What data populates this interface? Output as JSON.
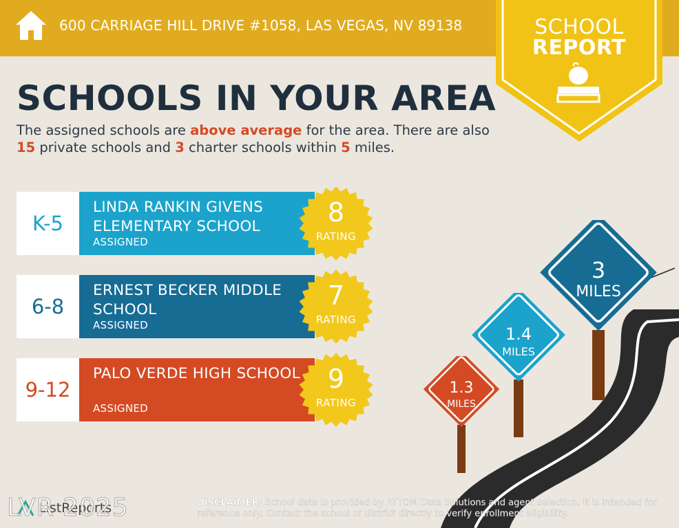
{
  "header": {
    "address": "600 CARRIAGE HILL DRIVE #1058, LAS VEGAS, NV 89138",
    "icon": "home-icon",
    "color": "#e0ab1e"
  },
  "badge": {
    "line1": "SCHOOL",
    "line2": "REPORT",
    "icon": "apple-on-book-icon",
    "color": "#f1c316"
  },
  "title": "SCHOOLS IN YOUR AREA",
  "intro": {
    "p1": "The assigned schools are ",
    "highlight1": "above average",
    "p2": " for the area. There are also ",
    "private_count": "15",
    "p3": " private schools and ",
    "charter_count": "3",
    "p4": " charter schools within ",
    "miles": "5",
    "p5": " miles.",
    "highlight_color": "#d44a23"
  },
  "schools": [
    {
      "grades": "K-5",
      "name": "LINDA RANKIN GIVENS ELEMENTARY SCHOOL",
      "status": "ASSIGNED",
      "rating": "8",
      "rating_label": "RATING",
      "color": "#1ba3cc"
    },
    {
      "grades": "6-8",
      "name": "ERNEST BECKER MIDDLE SCHOOL",
      "status": "ASSIGNED",
      "rating": "7",
      "rating_label": "RATING",
      "color": "#176c94"
    },
    {
      "grades": "9-12",
      "name": "PALO VERDE HIGH SCHOOL",
      "status": "ASSIGNED",
      "rating": "9",
      "rating_label": "RATING",
      "color": "#d44a23"
    }
  ],
  "rating_color": "#f3c81c",
  "signs": [
    {
      "value": "1.3",
      "unit": "MILES",
      "color": "#d44a23"
    },
    {
      "value": "1.4",
      "unit": "MILES",
      "color": "#1ba3cc"
    },
    {
      "value": "3",
      "unit": "MILES",
      "color": "#176c94"
    }
  ],
  "footer": {
    "watermark": "LVR 2025",
    "logo": "ListReports",
    "disclaimer_label": "DISCLAIMER:",
    "disclaimer_text": " School data is provided by ATTOM Data Solutions and agent selection. It is intended for reference only. Contact the school or district directly to verify enrollment eligibility."
  }
}
